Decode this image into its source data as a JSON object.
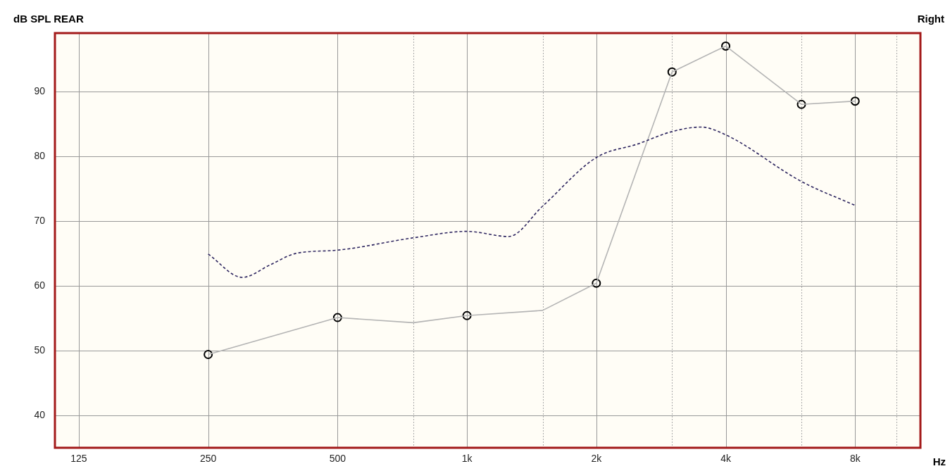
{
  "chart_data": {
    "type": "line",
    "title": "Right",
    "ylabel": "dB SPL REAR",
    "xlabel": "Hz",
    "log": "x",
    "grid": true,
    "xlim": [
      110,
      11350
    ],
    "xticks": [
      {
        "value": 125,
        "label": "125"
      },
      {
        "value": 250,
        "label": "250"
      },
      {
        "value": 500,
        "label": "500"
      },
      {
        "value": 750,
        "label": null
      },
      {
        "value": 1000,
        "label": "1k"
      },
      {
        "value": 1500,
        "label": null
      },
      {
        "value": 2000,
        "label": "2k"
      },
      {
        "value": 3000,
        "label": null
      },
      {
        "value": 4000,
        "label": "4k"
      },
      {
        "value": 6000,
        "label": null
      },
      {
        "value": 8000,
        "label": "8k"
      },
      {
        "value": 10000,
        "label": null
      }
    ],
    "ylim": [
      35,
      99
    ],
    "yticks": [
      40,
      50,
      60,
      70,
      80,
      90
    ],
    "series": [
      {
        "color": "#2e2660",
        "line_style": "dashed",
        "marker": "none",
        "x": [
          250,
          300,
          350,
          400,
          500,
          750,
          1000,
          1250,
          1500,
          2000,
          2500,
          3000,
          3500,
          4000,
          6000,
          8000
        ],
        "values": [
          64.9,
          61.3,
          63.3,
          65.0,
          65.5,
          67.4,
          68.4,
          67.6,
          72.3,
          79.8,
          81.9,
          83.8,
          84.5,
          83.3,
          76.1,
          72.4
        ]
      },
      {
        "color": "#b4b4b4",
        "line_style": "solid",
        "marker": "none",
        "x": [
          250,
          500,
          750,
          1000,
          1500,
          2000,
          3000,
          4000,
          6000,
          8000
        ],
        "values": [
          49.4,
          55.1,
          54.3,
          55.4,
          56.2,
          60.4,
          93.0,
          97.0,
          88.0,
          88.5
        ]
      },
      {
        "type": "scatter",
        "color": "#000000",
        "marker": "circle",
        "x": [
          250,
          500,
          1000,
          2000,
          3000,
          4000,
          6000,
          8000
        ],
        "values": [
          49.4,
          55.1,
          55.4,
          60.4,
          93.0,
          97.0,
          88.0,
          88.5
        ]
      }
    ]
  }
}
